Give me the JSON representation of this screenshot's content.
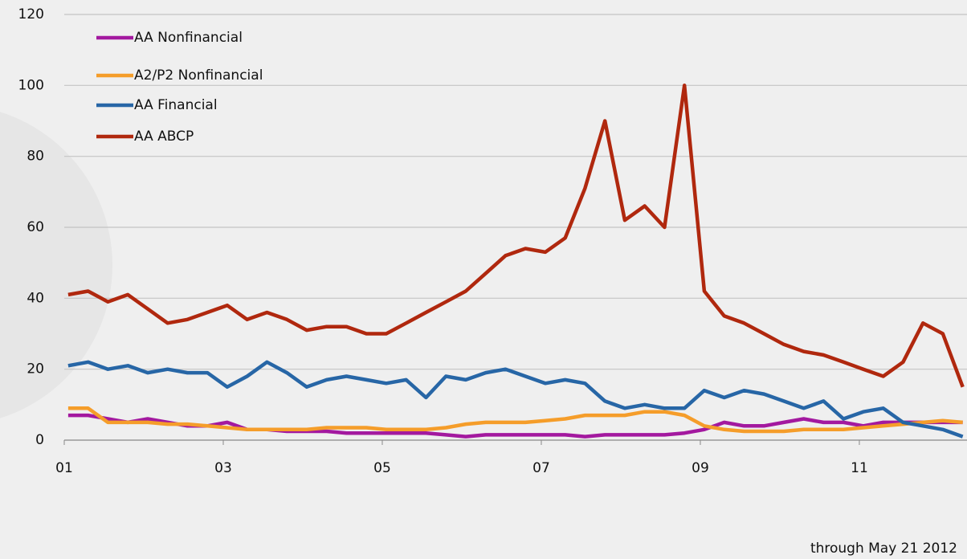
{
  "chart_data": {
    "type": "line",
    "note": "through May 21 2012",
    "x": [
      2001.05,
      2001.3,
      2001.55,
      2001.8,
      2002.05,
      2002.3,
      2002.55,
      2002.8,
      2003.05,
      2003.3,
      2003.55,
      2003.8,
      2004.05,
      2004.3,
      2004.55,
      2004.8,
      2005.05,
      2005.3,
      2005.55,
      2005.8,
      2006.05,
      2006.3,
      2006.55,
      2006.8,
      2007.05,
      2007.3,
      2007.55,
      2007.8,
      2008.05,
      2008.3,
      2008.55,
      2008.8,
      2009.05,
      2009.3,
      2009.55,
      2009.8,
      2010.05,
      2010.3,
      2010.55,
      2010.8,
      2011.05,
      2011.3,
      2011.55,
      2011.8,
      2012.05,
      2012.3
    ],
    "series": [
      {
        "name": "AA Nonfinancial",
        "color": "#a3199f",
        "values": [
          7,
          7,
          6,
          5,
          6,
          5,
          4,
          4,
          5,
          3,
          3,
          2.5,
          2.5,
          2.5,
          2,
          2,
          2,
          2,
          2,
          1.5,
          1,
          1.5,
          1.5,
          1.5,
          1.5,
          1.5,
          1,
          1.5,
          1.5,
          1.5,
          1.5,
          2,
          3,
          5,
          4,
          4,
          5,
          6,
          5,
          5,
          4,
          5,
          5,
          5,
          5,
          5
        ]
      },
      {
        "name": "A2/P2 Nonfinancial",
        "color": "#f59d2a",
        "values": [
          9,
          9,
          5,
          5,
          5,
          4.5,
          4.5,
          4,
          3.5,
          3,
          3,
          3,
          3,
          3.5,
          3.5,
          3.5,
          3,
          3,
          3,
          3.5,
          4.5,
          5,
          5,
          5,
          5.5,
          6,
          7,
          7,
          7,
          8,
          8,
          7,
          4,
          3,
          2.5,
          2.5,
          2.5,
          3,
          3,
          3,
          3.5,
          4,
          4.5,
          5,
          5.5,
          5
        ]
      },
      {
        "name": "AA Financial",
        "color": "#2766a6",
        "values": [
          21,
          22,
          20,
          21,
          19,
          20,
          19,
          19,
          15,
          18,
          22,
          19,
          15,
          17,
          18,
          17,
          16,
          17,
          12,
          18,
          17,
          19,
          20,
          18,
          16,
          17,
          16,
          11,
          9,
          10,
          9,
          9,
          14,
          12,
          14,
          13,
          11,
          9,
          11,
          6,
          8,
          9,
          5,
          4,
          3,
          1
        ]
      },
      {
        "name": "AA ABCP",
        "color": "#b0280e",
        "values": [
          41,
          42,
          39,
          41,
          37,
          33,
          34,
          36,
          38,
          34,
          36,
          34,
          31,
          32,
          32,
          30,
          30,
          33,
          36,
          39,
          42,
          47,
          52,
          54,
          53,
          57,
          71,
          90,
          62,
          66,
          60,
          100,
          42,
          35,
          33,
          30,
          27,
          25,
          24,
          22,
          20,
          18,
          22,
          33,
          30,
          15
        ]
      }
    ],
    "xlim": [
      2001,
      2012.354
    ],
    "xticks": [
      {
        "value": 2001,
        "label": "01"
      },
      {
        "value": 2003,
        "label": "03"
      },
      {
        "value": 2005,
        "label": "05"
      },
      {
        "value": 2007,
        "label": "07"
      },
      {
        "value": 2009,
        "label": "09"
      },
      {
        "value": 2011,
        "label": "11"
      }
    ],
    "ylim": [
      0,
      120
    ],
    "yticks": [
      0,
      20,
      40,
      60,
      80,
      100,
      120
    ],
    "grid": true,
    "legend": "top-left"
  }
}
